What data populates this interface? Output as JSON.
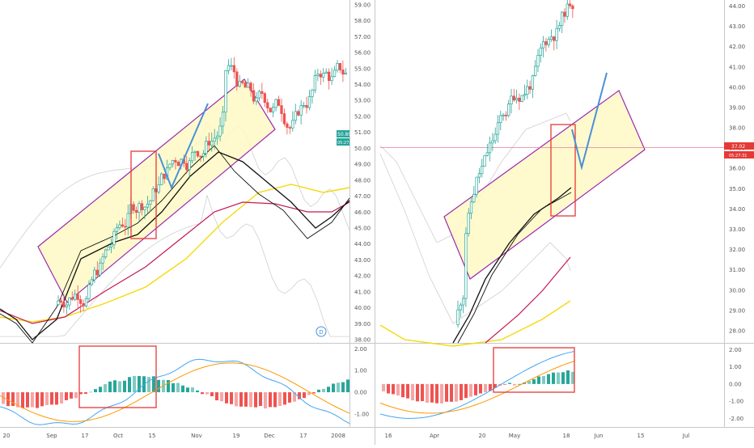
{
  "chart_data": [
    {
      "type": "candlestick",
      "panel": "left",
      "y_ticks": [
        "59.00",
        "58.00",
        "57.00",
        "56.00",
        "55.00",
        "54.00",
        "53.00",
        "52.00",
        "51.00",
        "50.00",
        "49.00",
        "48.00",
        "47.00",
        "46.00",
        "45.00",
        "44.00",
        "43.00",
        "42.00",
        "41.00",
        "40.00",
        "39.00",
        "38.00"
      ],
      "ylim": [
        37.8,
        59.3
      ],
      "x_ticks": [
        "20",
        "Sep",
        "17",
        "Oct",
        "15",
        "Nov",
        "19",
        "Dec",
        "17",
        "2008"
      ],
      "price_label": "50.80",
      "countdown_label": "05:27:31",
      "event_marker": "D",
      "macd_ticks": [
        "2.00",
        "1.00",
        "0.00",
        "-1.00"
      ],
      "macd_ylim": [
        -1.6,
        2.2
      ]
    },
    {
      "type": "candlestick",
      "panel": "right",
      "y_ticks": [
        "44.00",
        "43.00",
        "42.00",
        "41.00",
        "40.00",
        "39.00",
        "38.00",
        "37.00",
        "36.00",
        "35.00",
        "34.00",
        "33.00",
        "32.00",
        "31.00",
        "30.00",
        "29.00",
        "28.00"
      ],
      "ylim": [
        27.4,
        44.3
      ],
      "x_ticks": [
        "16",
        "Apr",
        "20",
        "May",
        "18",
        "Jun",
        "15",
        "Jul"
      ],
      "price_label": "37.02",
      "countdown_label": "05:27:31",
      "macd_ticks": [
        "2.00",
        "1.00",
        "0.00",
        "-1.00",
        "-2.00"
      ],
      "macd_ylim": [
        -2.5,
        2.3
      ]
    }
  ],
  "colors": {
    "up": "#26a69a",
    "down": "#ef5350",
    "channel_border": "#9c27b0",
    "channel_fill": "#fff9c4",
    "highlight_box": "#e53935",
    "projection": "#4a90d9",
    "ma_black": "#111111",
    "ma_crimson": "#c2185b",
    "ma_yellow": "#f5d90a",
    "macd_line": "#42a5f5",
    "signal_line": "#ff9800",
    "hline": "#e57c9b",
    "price_tag": "#26a69a",
    "price_tag_red": "#e53935"
  }
}
